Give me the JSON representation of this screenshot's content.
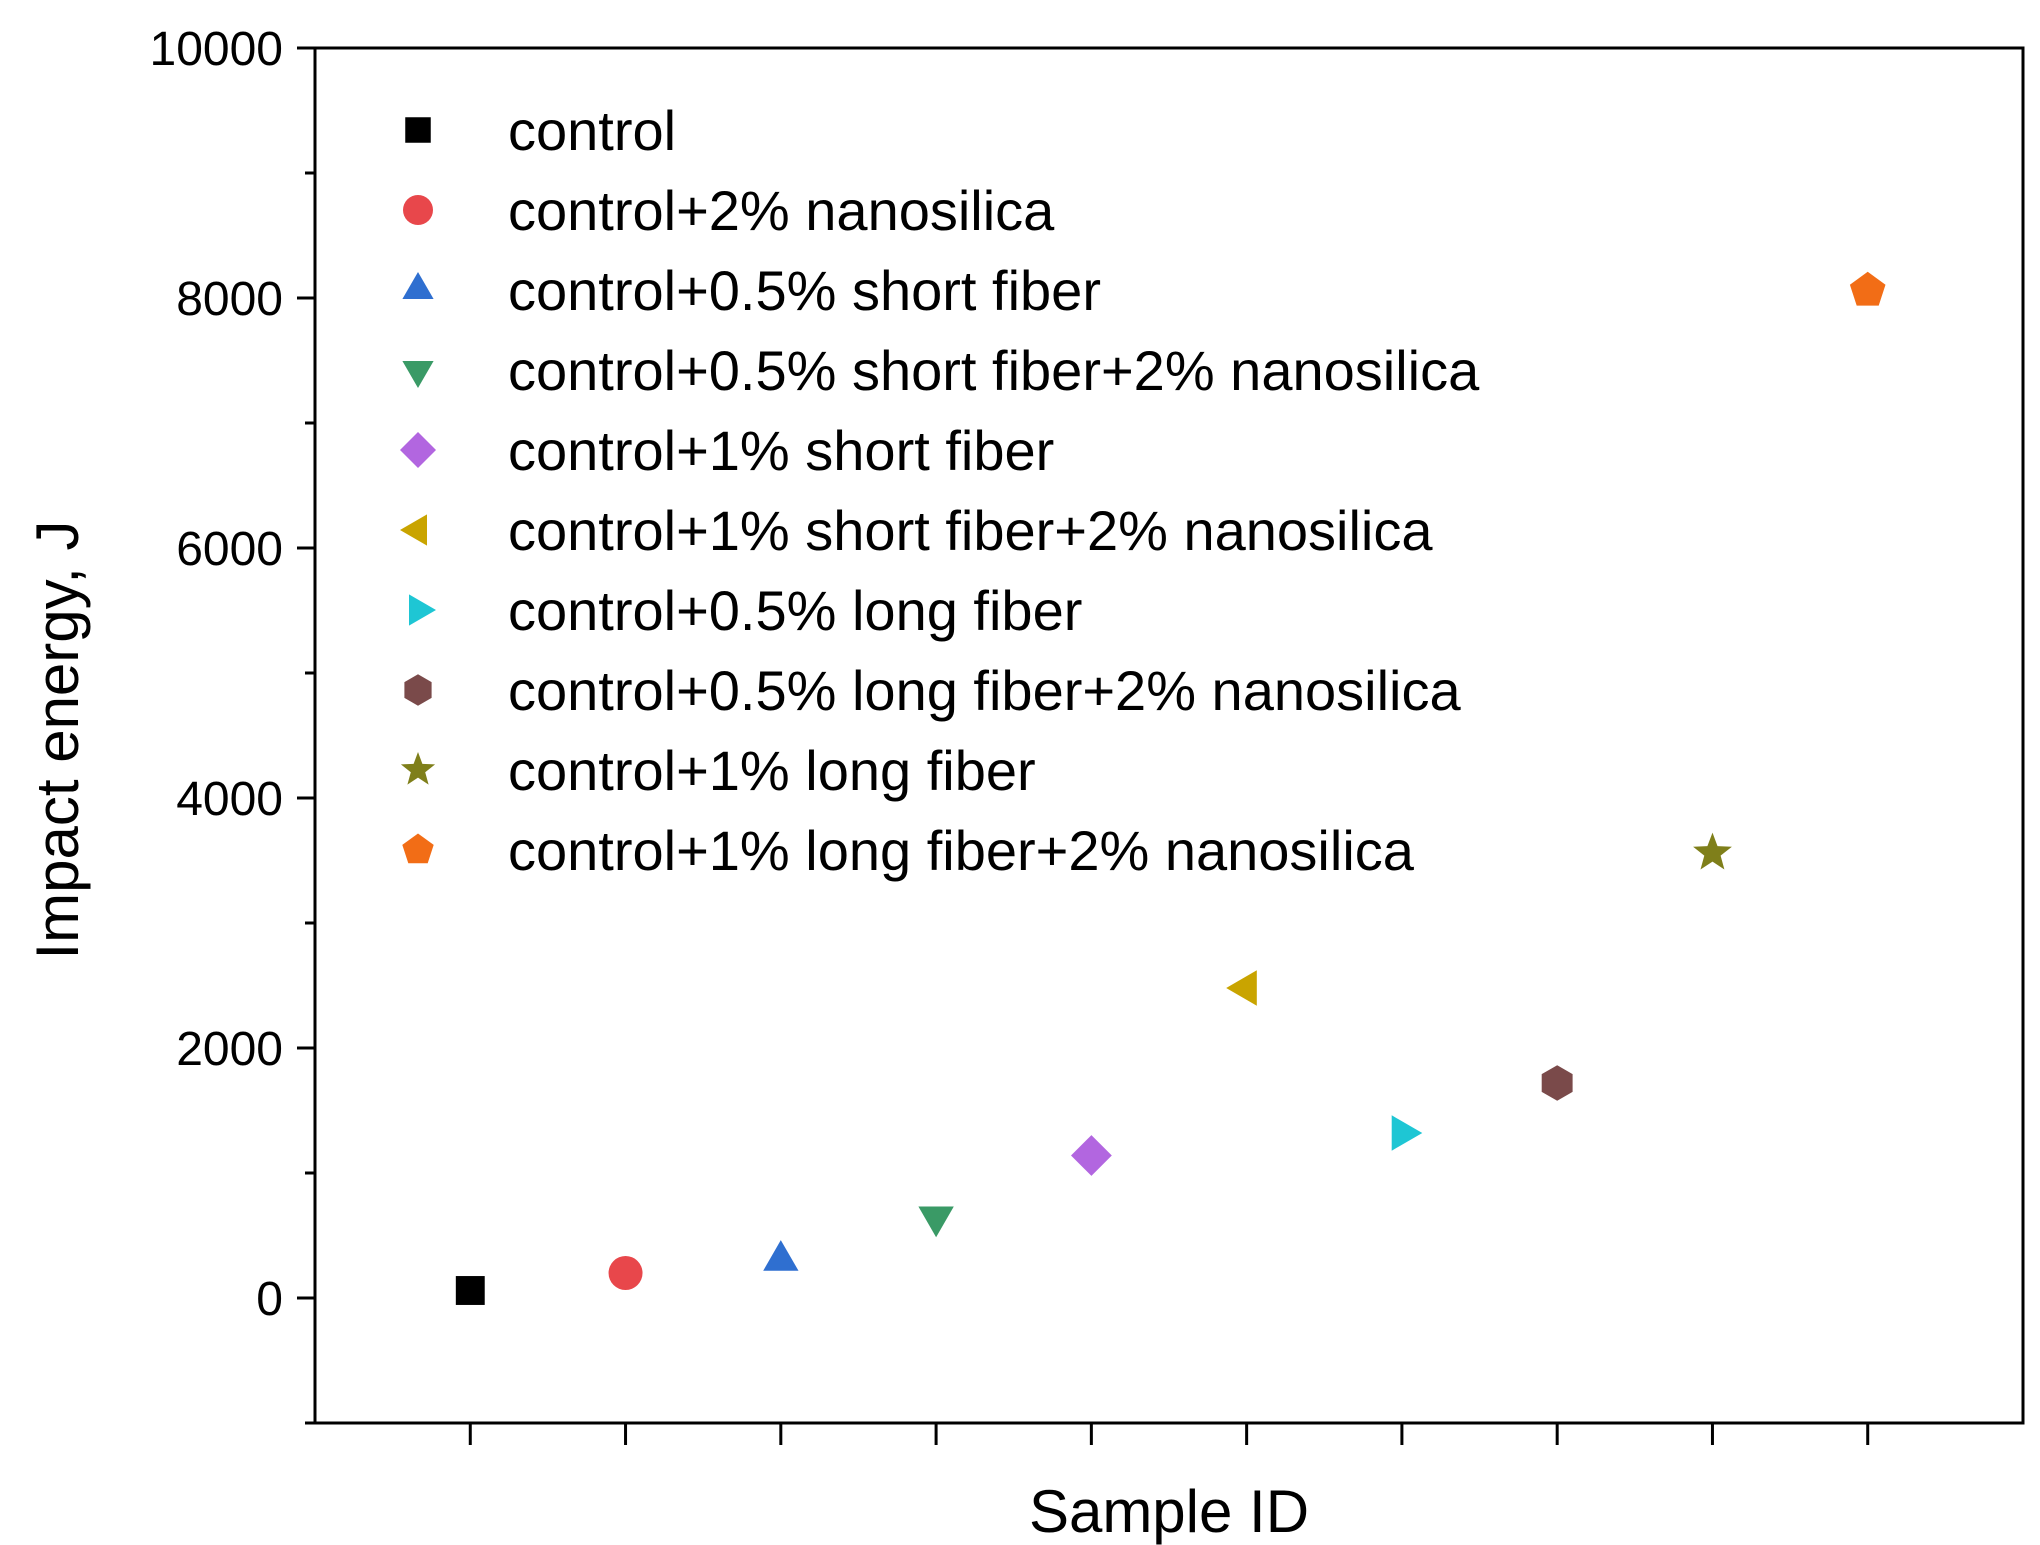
{
  "chart_data": {
    "type": "scatter",
    "title": "",
    "xlabel": "Sample ID",
    "ylabel": "Impact energy, J",
    "xlim": [
      0,
      11
    ],
    "ylim": [
      -1000,
      10000
    ],
    "yticks": [
      0,
      2000,
      4000,
      6000,
      8000,
      10000
    ],
    "xticks": [
      1,
      2,
      3,
      4,
      5,
      6,
      7,
      8,
      9,
      10
    ],
    "grid": false,
    "legend_position": "top-left",
    "series": [
      {
        "name": "control",
        "x": 1,
        "y": 60,
        "marker": "square",
        "color": "#000000"
      },
      {
        "name": "control+2% nanosilica",
        "x": 2,
        "y": 200,
        "marker": "circle",
        "color": "#e8474b"
      },
      {
        "name": "control+0.5% short fiber",
        "x": 3,
        "y": 300,
        "marker": "triangle-up",
        "color": "#2f6fd0"
      },
      {
        "name": "control+0.5% short fiber+2% nanosilica",
        "x": 4,
        "y": 650,
        "marker": "triangle-down",
        "color": "#3a9a66"
      },
      {
        "name": "control+1% short fiber",
        "x": 5,
        "y": 1140,
        "marker": "diamond",
        "color": "#b266e0"
      },
      {
        "name": "control+1% short fiber+2% nanosilica",
        "x": 6,
        "y": 2480,
        "marker": "triangle-left",
        "color": "#c9a400"
      },
      {
        "name": "control+0.5% long fiber",
        "x": 7,
        "y": 1320,
        "marker": "triangle-right",
        "color": "#1ec6d4"
      },
      {
        "name": "control+0.5% long fiber+2% nanosilica",
        "x": 8,
        "y": 1720,
        "marker": "hexagon",
        "color": "#7a4a4a"
      },
      {
        "name": "control+1% long fiber",
        "x": 9,
        "y": 3560,
        "marker": "star",
        "color": "#7f7f1a"
      },
      {
        "name": "control+1% long fiber+2% nanosilica",
        "x": 10,
        "y": 8060,
        "marker": "pentagon",
        "color": "#f26d16"
      }
    ]
  }
}
